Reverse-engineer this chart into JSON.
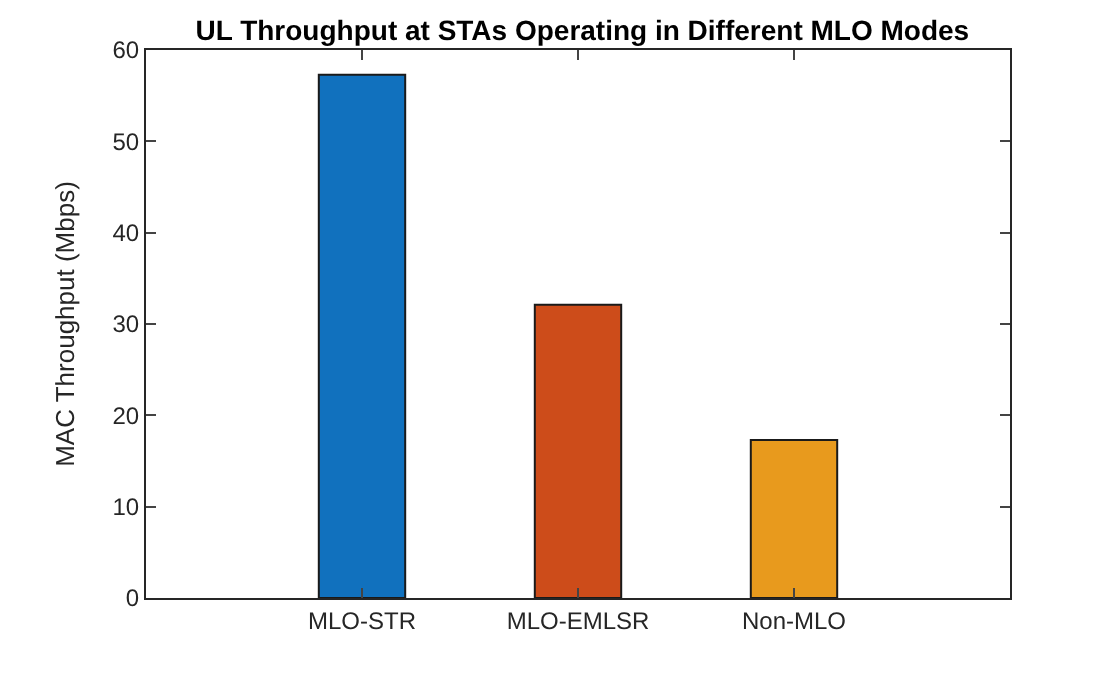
{
  "chart_data": {
    "type": "bar",
    "title": "UL Throughput at STAs Operating in Different MLO Modes",
    "ylabel": "MAC Throughput (Mbps)",
    "categories": [
      "MLO-STR",
      "MLO-EMLSR",
      "Non-MLO"
    ],
    "values": [
      57.3,
      32.1,
      17.3
    ],
    "colors": [
      "#1171be",
      "#cd4c1a",
      "#e89a1d"
    ],
    "ylim": [
      0,
      60
    ],
    "yticks": [
      0,
      10,
      20,
      30,
      40,
      50,
      60
    ],
    "grid": false
  }
}
